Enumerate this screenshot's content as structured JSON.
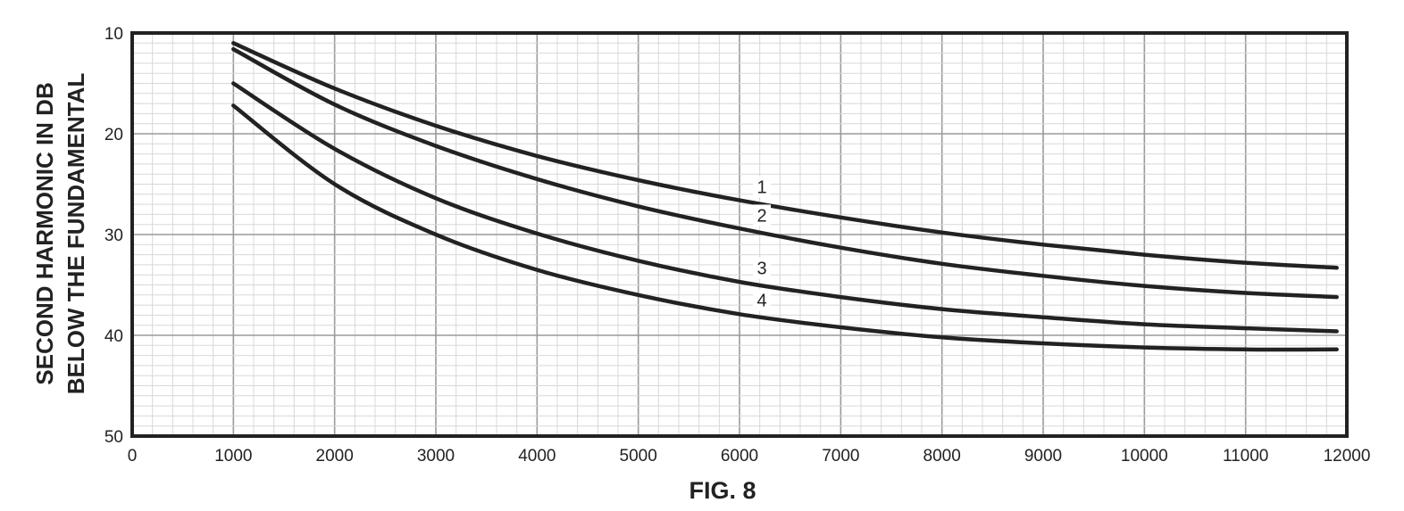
{
  "figure": {
    "caption": "FIG. 8"
  },
  "chart_data": {
    "type": "line",
    "ylabel_lines": [
      "SECOND HARMONIC IN DB",
      "BELOW THE FUNDAMENTAL"
    ],
    "xlim": [
      0,
      12000
    ],
    "ylim": [
      10,
      50
    ],
    "y_inverted": true,
    "grid": true,
    "x_ticks": [
      "0",
      "1000",
      "2000",
      "3000",
      "4000",
      "5000",
      "6000",
      "7000",
      "8000",
      "9000",
      "10000",
      "11000",
      "12000"
    ],
    "y_ticks": [
      "10",
      "20",
      "30",
      "40",
      "50"
    ],
    "series": [
      {
        "name": "1",
        "x": [
          1000,
          2000,
          3000,
          4000,
          5000,
          6000,
          7000,
          8000,
          9000,
          10000,
          11000,
          11900
        ],
        "y": [
          11.0,
          15.5,
          19.2,
          22.2,
          24.6,
          26.6,
          28.3,
          29.8,
          31.0,
          32.0,
          32.8,
          33.3
        ]
      },
      {
        "name": "2",
        "x": [
          1000,
          2000,
          3000,
          4000,
          5000,
          6000,
          7000,
          8000,
          9000,
          10000,
          11000,
          11900
        ],
        "y": [
          11.6,
          17.1,
          21.2,
          24.5,
          27.2,
          29.4,
          31.3,
          32.9,
          34.1,
          35.1,
          35.8,
          36.2
        ]
      },
      {
        "name": "3",
        "x": [
          1000,
          2000,
          3000,
          4000,
          5000,
          6000,
          7000,
          8000,
          9000,
          10000,
          11000,
          11900
        ],
        "y": [
          15.0,
          21.5,
          26.4,
          29.9,
          32.6,
          34.7,
          36.2,
          37.4,
          38.2,
          38.9,
          39.3,
          39.6
        ]
      },
      {
        "name": "4",
        "x": [
          1000,
          2000,
          3000,
          4000,
          5000,
          6000,
          7000,
          8000,
          9000,
          10000,
          11000,
          11900
        ],
        "y": [
          17.2,
          25.0,
          30.0,
          33.5,
          36.0,
          37.9,
          39.2,
          40.2,
          40.8,
          41.2,
          41.4,
          41.4
        ]
      }
    ]
  }
}
